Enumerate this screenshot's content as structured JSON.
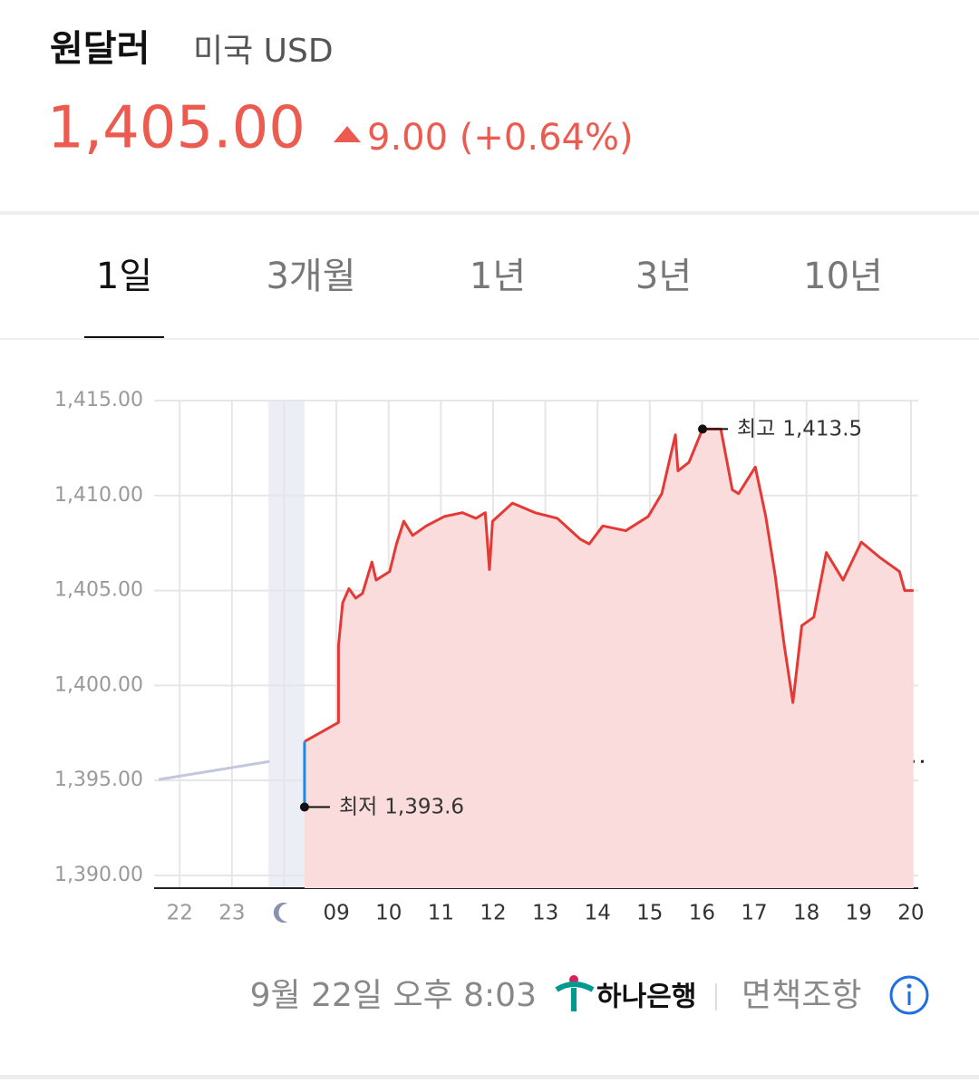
{
  "header": {
    "title": "원달러",
    "subtitle": "미국 USD",
    "price": "1,405.00",
    "change": "9.00 (+0.64%)"
  },
  "tabs": [
    "1일",
    "3개월",
    "1년",
    "3년",
    "10년"
  ],
  "chart_data": {
    "type": "line",
    "categories": [
      "22",
      "23",
      null,
      "09",
      "10",
      "11",
      "12",
      "13",
      "14",
      "15",
      "16",
      "17",
      "18",
      "19",
      "20"
    ],
    "xticks": [
      0,
      1,
      2,
      3,
      4,
      5,
      6,
      7,
      8,
      9,
      10,
      11,
      12,
      13,
      14
    ],
    "xlim": [
      -0.49,
      14.14
    ],
    "ylim": [
      1389.33,
      1415
    ],
    "yticks": [
      {
        "value": 1390,
        "label": "1,390.00"
      },
      {
        "value": 1395,
        "label": "1,395.00"
      },
      {
        "value": 1400,
        "label": "1,400.00"
      },
      {
        "value": 1405,
        "label": "1,405.00"
      },
      {
        "value": 1410,
        "label": "1,410.00"
      },
      {
        "value": 1415,
        "label": "1,415.00"
      }
    ],
    "grid": true,
    "night_band": [
      1.7,
      2.39
    ],
    "previous_close": 1396,
    "series": [
      {
        "color": "#c3c6dc",
        "x": [
          -0.4,
          1.72
        ],
        "values": [
          1395.05,
          1396.0
        ]
      },
      {
        "color": "#e53935",
        "fill": "#fbdcdc",
        "x": [
          2.39,
          3.04,
          3.04,
          3.12,
          3.24,
          3.37,
          3.5,
          3.68,
          3.76,
          4.02,
          4.15,
          4.29,
          4.46,
          4.72,
          5.07,
          5.41,
          5.67,
          5.85,
          5.93,
          5.99,
          6.37,
          6.8,
          7.23,
          7.67,
          7.84,
          8.1,
          8.54,
          8.97,
          9.23,
          9.49,
          9.54,
          9.75,
          10.01,
          10.36,
          10.58,
          10.7,
          11.02,
          11.22,
          11.4,
          11.57,
          11.74,
          11.91,
          12.14,
          12.38,
          12.7,
          13.05,
          13.4,
          13.78,
          13.88,
          14.05
        ],
        "values": [
          1397.05,
          1398.05,
          1402.1,
          1404.35,
          1405.1,
          1404.6,
          1404.85,
          1406.5,
          1405.55,
          1406.0,
          1407.45,
          1408.65,
          1407.9,
          1408.4,
          1408.9,
          1409.1,
          1408.8,
          1409.1,
          1406.1,
          1408.65,
          1409.6,
          1409.1,
          1408.8,
          1407.7,
          1407.45,
          1408.4,
          1408.15,
          1408.9,
          1410.1,
          1413.2,
          1411.3,
          1411.75,
          1413.5,
          1413.5,
          1410.3,
          1410.1,
          1411.5,
          1408.9,
          1405.8,
          1402.2,
          1399.1,
          1403.15,
          1403.6,
          1407.0,
          1405.55,
          1407.55,
          1406.75,
          1406.0,
          1405.0,
          1405.0
        ]
      }
    ],
    "high": {
      "text": "최고",
      "value": 1413.5,
      "label": "1,413.5",
      "x": 10.01
    },
    "low": {
      "text": "최저",
      "value": 1393.6,
      "label": "1,393.6",
      "x": 2.39,
      "color": "#1e88e5"
    }
  },
  "footer": {
    "time": "9월 22일 오후 8:03",
    "bank": "하나은행",
    "disclaimer": "면책조항"
  }
}
